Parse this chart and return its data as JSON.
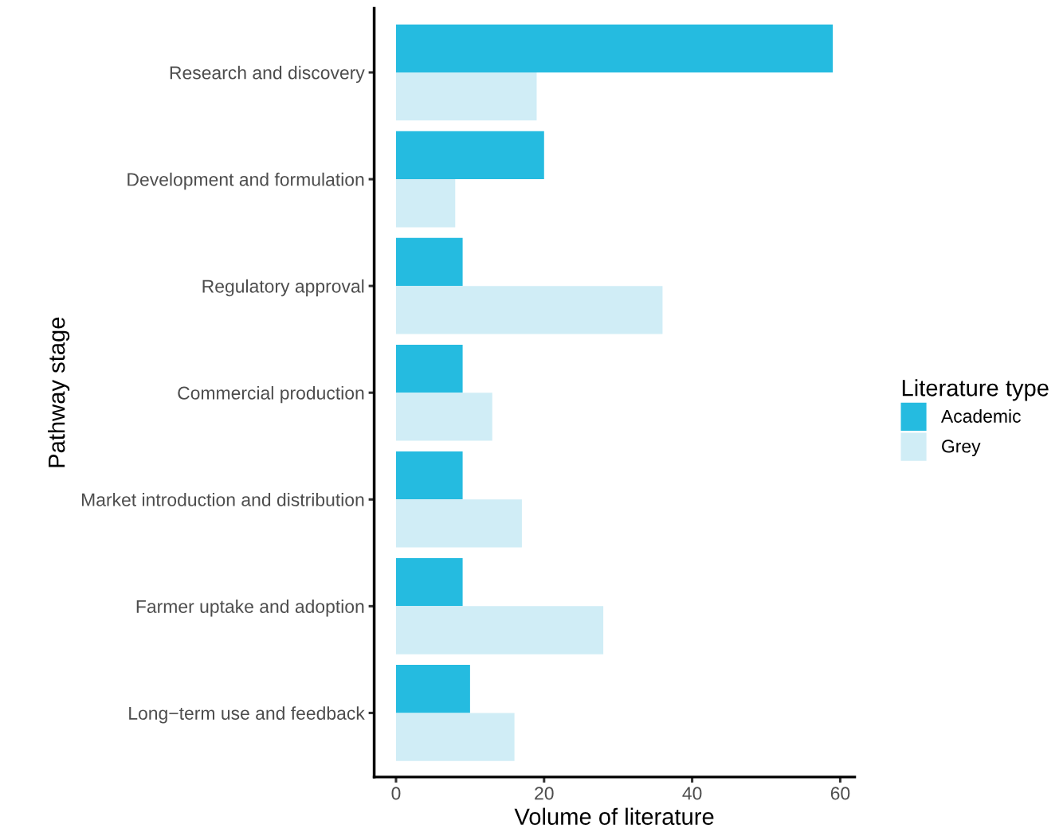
{
  "chart_data": {
    "type": "bar",
    "orientation": "horizontal",
    "xlabel": "Volume of literature",
    "ylabel": "Pathway stage",
    "legend_title": "Literature type",
    "categories": [
      "Research and discovery",
      "Development and formulation",
      "Regulatory approval",
      "Commercial production",
      "Market introduction and distribution",
      "Farmer uptake and adoption",
      "Long−term use and feedback"
    ],
    "series": [
      {
        "name": "Academic",
        "color": "#25bbe0",
        "values": [
          59,
          20,
          9,
          9,
          9,
          9,
          10
        ]
      },
      {
        "name": "Grey",
        "color": "#d0edf6",
        "values": [
          19,
          8,
          36,
          13,
          17,
          28,
          16
        ]
      }
    ],
    "xlim": [
      -2.95,
      61.95
    ],
    "xticks": [
      0,
      20,
      40,
      60
    ],
    "grid": false,
    "legend": "right"
  }
}
